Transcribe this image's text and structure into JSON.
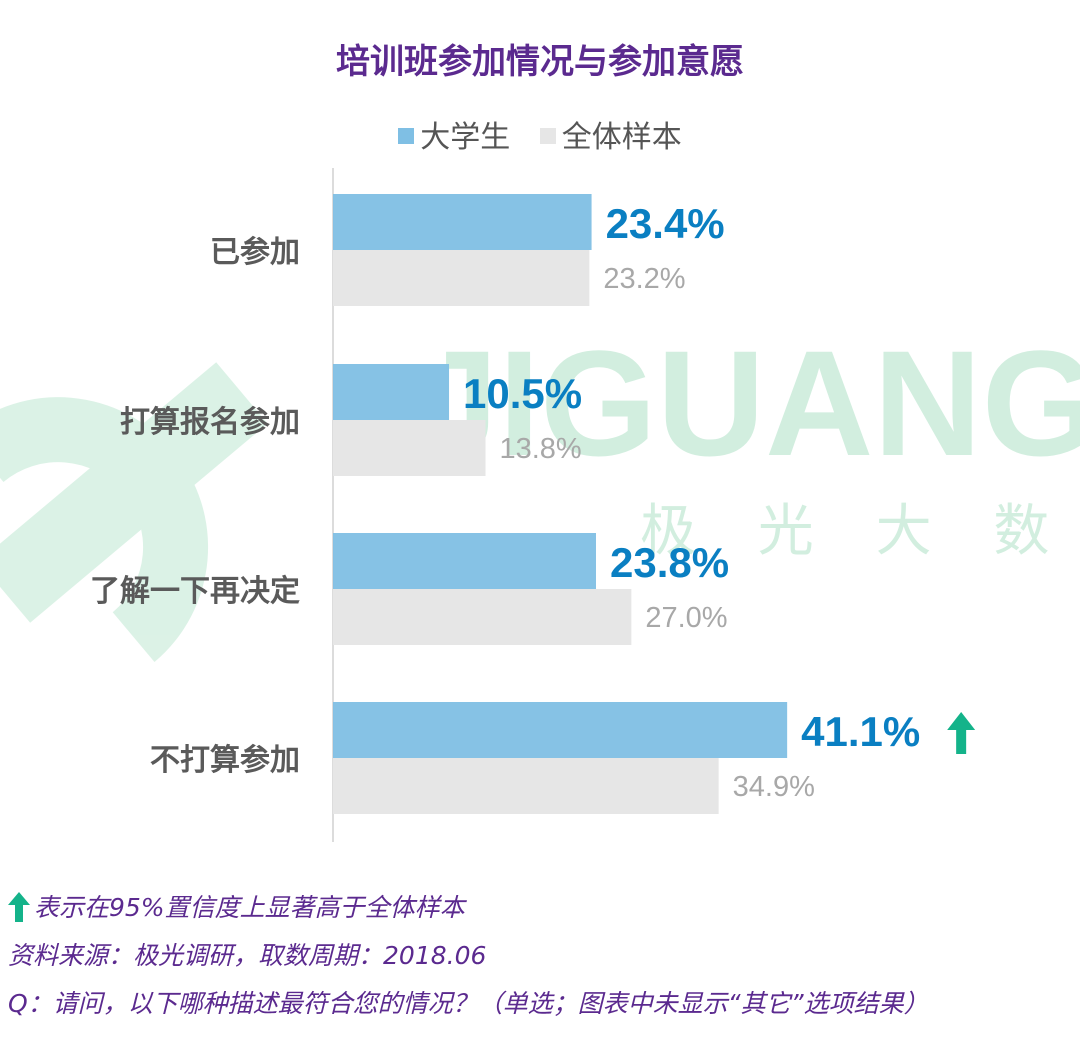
{
  "colors": {
    "primary_bar": "#7fbfe4",
    "secondary_bar": "#e6e6e6",
    "primary_text": "#0a7fc2",
    "secondary_text": "#a8a8a8",
    "title": "#5b2a8f",
    "significance_arrow": "#14b38a",
    "watermark": "#bfe8d2"
  },
  "watermark": {
    "brand": "JIGUANG",
    "subtitle": "极 光 大 数 据"
  },
  "footnotes": {
    "significance": "表示在95%置信度上显著高于全体样本",
    "source": "资料来源：极光调研，取数周期：2018.06",
    "question": "Q：请问，以下哪种描述最符合您的情况？（单选；图表中未显示“其它”选项结果）"
  },
  "chart_data": {
    "type": "bar",
    "orientation": "horizontal",
    "title": "培训班参加情况与参加意愿",
    "legend_position": "top",
    "grid": false,
    "xlim": [
      0,
      50
    ],
    "unit": "%",
    "categories": [
      "已参加",
      "打算报名参加",
      "了解一下再决定",
      "不打算参加"
    ],
    "series": [
      {
        "name": "大学生",
        "values": [
          23.4,
          10.5,
          23.8,
          41.1
        ],
        "labels": [
          "23.4%",
          "10.5%",
          "23.8%",
          "41.1%"
        ],
        "significant": [
          false,
          false,
          false,
          true
        ]
      },
      {
        "name": "全体样本",
        "values": [
          23.2,
          13.8,
          27.0,
          34.9
        ],
        "labels": [
          "23.2%",
          "13.8%",
          "27.0%",
          "34.9%"
        ]
      }
    ]
  }
}
